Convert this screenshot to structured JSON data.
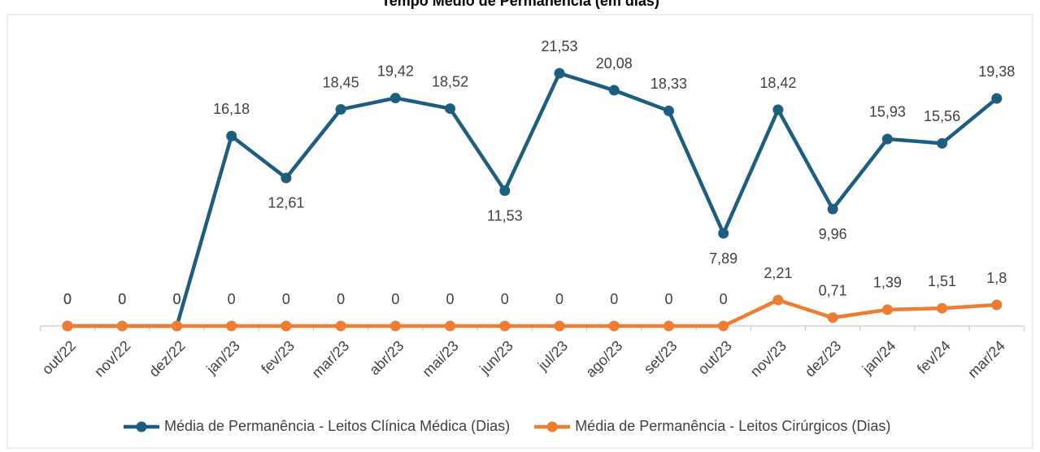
{
  "chart_data": {
    "type": "line",
    "title": "Tempo Médio de Permanência (em dias)",
    "categories": [
      "out/22",
      "nov/22",
      "dez/22",
      "jan/23",
      "fev/23",
      "mar/23",
      "abr/23",
      "mai/23",
      "jun/23",
      "jul/23",
      "ago/23",
      "set/23",
      "out/23",
      "nov/23",
      "dez/23",
      "jan/24",
      "fev/24",
      "mar/24"
    ],
    "series": [
      {
        "name": "Média de Permanência - Leitos Clínica Médica (Dias)",
        "color": "#1b5e80",
        "values": [
          0,
          0,
          0,
          16.18,
          12.61,
          18.45,
          19.42,
          18.52,
          11.53,
          21.53,
          20.08,
          18.33,
          7.89,
          18.42,
          9.96,
          15.93,
          15.56,
          19.38
        ],
        "value_labels": [
          "0",
          "0",
          "0",
          "16,18",
          "12,61",
          "18,45",
          "19,42",
          "18,52",
          "11,53",
          "21,53",
          "20,08",
          "18,33",
          "7,89",
          "18,42",
          "9,96",
          "15,93",
          "15,56",
          "19,38"
        ]
      },
      {
        "name": "Média de Permanência - Leitos Cirúrgicos (Dias)",
        "color": "#ed7d31",
        "values": [
          0,
          0,
          0,
          0,
          0,
          0,
          0,
          0,
          0,
          0,
          0,
          0,
          0,
          2.21,
          0.71,
          1.39,
          1.51,
          1.8
        ],
        "value_labels": [
          "0",
          "0",
          "0",
          "0",
          "0",
          "0",
          "0",
          "0",
          "0",
          "0",
          "0",
          "0",
          "0",
          "2,21",
          "0,71",
          "1,39",
          "1,51",
          "1,8"
        ]
      }
    ],
    "ylim": [
      0,
      25
    ]
  }
}
